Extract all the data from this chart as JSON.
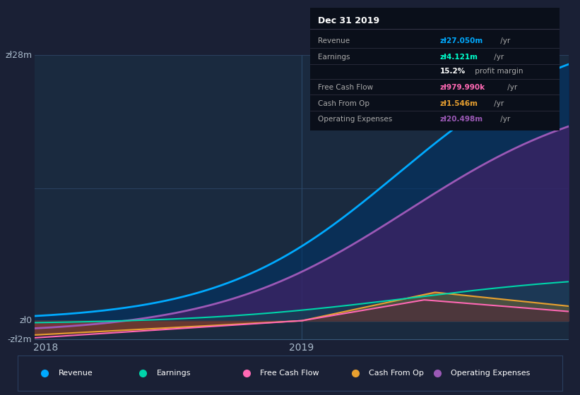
{
  "bg_color": "#1a2035",
  "plot_bg": "#1a2a3f",
  "info_box_bg": "#0a0f1a",
  "gridline_color": "#2a3f5f",
  "axis_label_color": "#aabbcc",
  "vline_x": 0.5,
  "ylim": [
    -2000000,
    28000000
  ],
  "series": {
    "revenue": {
      "color": "#00aaff",
      "fill_color": "#003366",
      "fill_alpha": 0.6,
      "label": "Revenue"
    },
    "operating_expenses": {
      "color": "#9b59b6",
      "fill_color": "#4a1f6a",
      "fill_alpha": 0.6,
      "label": "Operating Expenses"
    },
    "cash_from_op": {
      "color": "#e8a030",
      "fill_color": "#c87820",
      "fill_alpha": 0.5,
      "label": "Cash From Op"
    },
    "earnings": {
      "color": "#00d4aa",
      "fill_color": "#005544",
      "fill_alpha": 0.4,
      "label": "Earnings"
    },
    "free_cash_flow": {
      "color": "#ff69b4",
      "fill_color": "#550033",
      "fill_alpha": 0.3,
      "label": "Free Cash Flow"
    }
  },
  "info_rows": [
    {
      "label": "Revenue",
      "value": "zł27.050m",
      "unit": " /yr",
      "value_color": "#00aaff"
    },
    {
      "label": "Earnings",
      "value": "zł4.121m",
      "unit": " /yr",
      "value_color": "#00ffcc"
    },
    {
      "label": "",
      "value": "15.2%",
      "unit": " profit margin",
      "value_color": "#ffffff"
    },
    {
      "label": "Free Cash Flow",
      "value": "zł979.990k",
      "unit": " /yr",
      "value_color": "#ff69b4"
    },
    {
      "label": "Cash From Op",
      "value": "zł1.546m",
      "unit": " /yr",
      "value_color": "#e8a030"
    },
    {
      "label": "Operating Expenses",
      "value": "zł20.498m",
      "unit": " /yr",
      "value_color": "#9b59b6"
    }
  ],
  "legend": [
    {
      "label": "Revenue",
      "color": "#00aaff"
    },
    {
      "label": "Earnings",
      "color": "#00d4aa"
    },
    {
      "label": "Free Cash Flow",
      "color": "#ff69b4"
    },
    {
      "label": "Cash From Op",
      "color": "#e8a030"
    },
    {
      "label": "Operating Expenses",
      "color": "#9b59b6"
    }
  ]
}
